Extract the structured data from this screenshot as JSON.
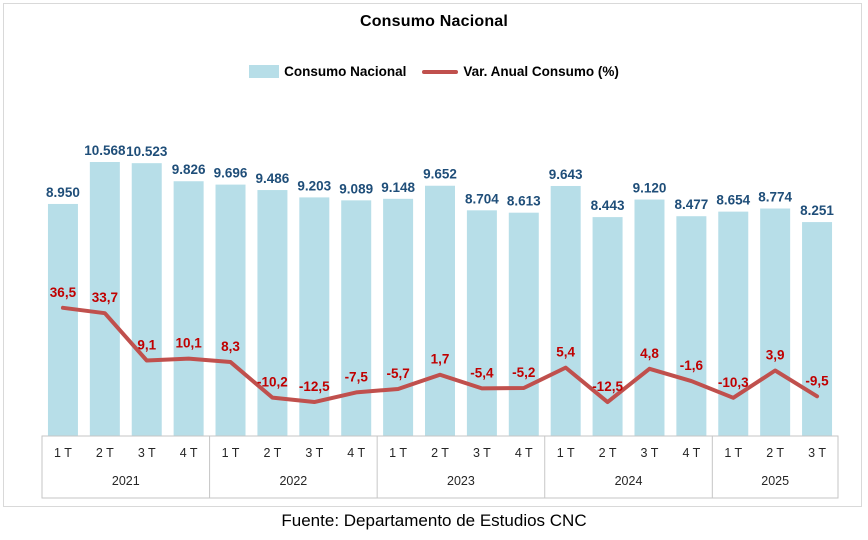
{
  "title": "Consumo Nacional",
  "legend": {
    "bar_label": "Consumo Nacional",
    "line_label": "Var. Anual Consumo (%)"
  },
  "footer": "Fuente: Departamento de Estudios CNC",
  "colors": {
    "bar": "#b7dee8",
    "line": "#c0504d",
    "bar_label": "#1f4e79",
    "line_label": "#c00000",
    "axis_text": "#262626",
    "axis_line": "#c6c6c6",
    "frame_border": "#d9d9d9"
  },
  "chart_data": {
    "type": "bar",
    "subtype": "bar-line-combo",
    "title": "Consumo Nacional",
    "legend_position": "top",
    "grid": false,
    "value_axes_visible": false,
    "groups": [
      {
        "label": "2021",
        "ticks": [
          "1 T",
          "2 T",
          "3 T",
          "4 T"
        ]
      },
      {
        "label": "2022",
        "ticks": [
          "1 T",
          "2 T",
          "3 T",
          "4 T"
        ]
      },
      {
        "label": "2023",
        "ticks": [
          "1 T",
          "2 T",
          "3 T",
          "4 T"
        ]
      },
      {
        "label": "2024",
        "ticks": [
          "1 T",
          "2 T",
          "3 T",
          "4 T"
        ]
      },
      {
        "label": "2025",
        "ticks": [
          "1 T",
          "2 T",
          "3 T"
        ]
      }
    ],
    "series": [
      {
        "name": "Consumo Nacional",
        "type": "bar",
        "color": "#b7dee8",
        "values": [
          8950,
          10568,
          10523,
          9826,
          9696,
          9486,
          9203,
          9089,
          9148,
          9652,
          8704,
          8613,
          9643,
          8443,
          9120,
          8477,
          8654,
          8774,
          8251
        ],
        "labels": [
          "8.950",
          "10.568",
          "10.523",
          "9.826",
          "9.696",
          "9.486",
          "9.203",
          "9.089",
          "9.148",
          "9.652",
          "8.704",
          "8.613",
          "9.643",
          "8.443",
          "9.120",
          "8.477",
          "8.654",
          "8.774",
          "8.251"
        ]
      },
      {
        "name": "Var. Anual Consumo (%)",
        "type": "line",
        "color": "#c0504d",
        "values": [
          36.5,
          33.7,
          9.1,
          10.1,
          8.3,
          -10.2,
          -12.5,
          -7.5,
          -5.7,
          1.7,
          -5.4,
          -5.2,
          5.4,
          -12.5,
          4.8,
          -1.6,
          -10.3,
          3.9,
          -9.5
        ],
        "labels": [
          "36,5",
          "33,7",
          "9,1",
          "10,1",
          "8,3",
          "-10,2",
          "-12,5",
          "-7,5",
          "-5,7",
          "1,7",
          "-5,4",
          "-5,2",
          "5,4",
          "-12,5",
          "4,8",
          "-1,6",
          "-10,3",
          "3,9",
          "-9,5"
        ]
      }
    ]
  }
}
